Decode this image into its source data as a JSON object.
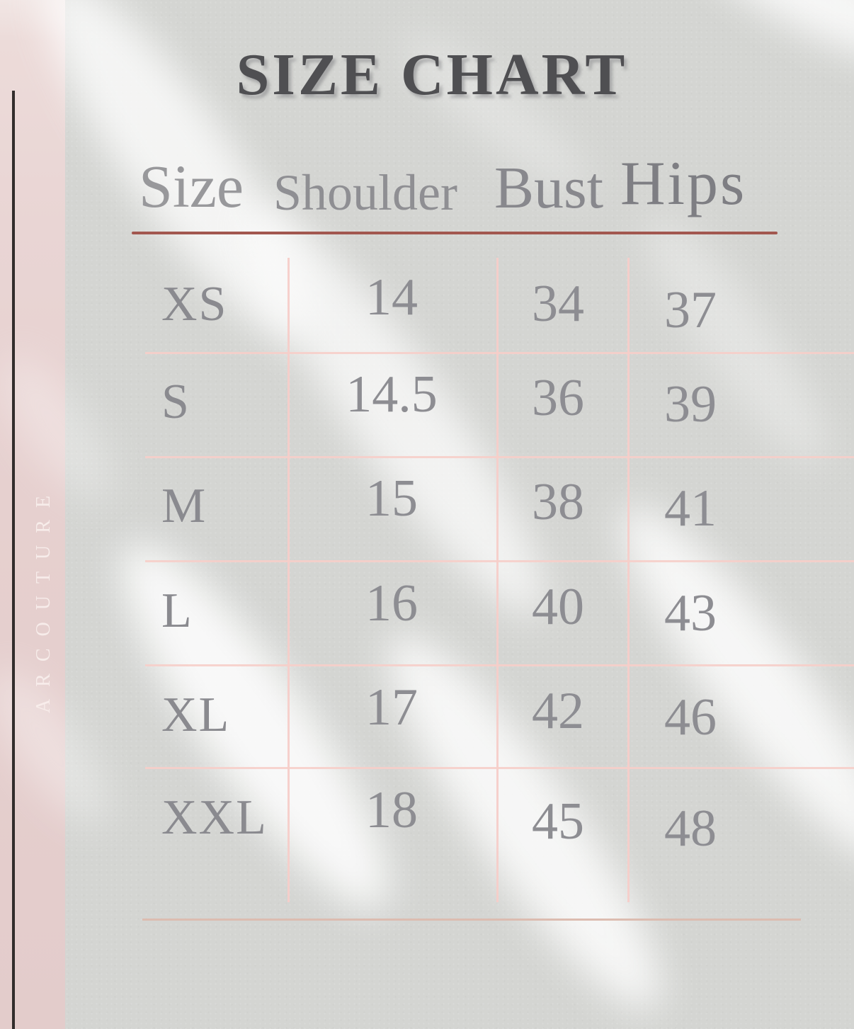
{
  "title": "SIZE CHART",
  "brand": "ARCOUTURE",
  "table": {
    "columns": [
      "Size",
      "Shoulder",
      "Bust",
      "Hips"
    ],
    "rows": [
      {
        "size": "XS",
        "shoulder": "14",
        "bust": "34",
        "hips": "37"
      },
      {
        "size": "S",
        "shoulder": "14.5",
        "bust": "36",
        "hips": "39"
      },
      {
        "size": "M",
        "shoulder": "15",
        "bust": "38",
        "hips": "41"
      },
      {
        "size": "L",
        "shoulder": "16",
        "bust": "40",
        "hips": "43"
      },
      {
        "size": "XL",
        "shoulder": "17",
        "bust": "42",
        "hips": "46"
      },
      {
        "size": "XXL",
        "shoulder": "18",
        "bust": "45",
        "hips": "48"
      }
    ]
  },
  "colors": {
    "background_gray": "#d4d5d2",
    "sidebar_pink": "#e6d0cf",
    "grid_pink": "#f6cec9",
    "header_rule_red": "#a2574f",
    "bottom_rule_tan": "#dcbcb0",
    "text_gray": "#8d8d92",
    "title_gray": "#4f4f52",
    "brand_text": "#f8efed",
    "sidebar_rule_dark": "#322d2c"
  },
  "chart_data": {
    "type": "table",
    "title": "SIZE CHART",
    "columns": [
      "Size",
      "Shoulder",
      "Bust",
      "Hips"
    ],
    "rows": [
      [
        "XS",
        "14",
        "34",
        "37"
      ],
      [
        "S",
        "14.5",
        "36",
        "39"
      ],
      [
        "M",
        "15",
        "38",
        "41"
      ],
      [
        "L",
        "16",
        "40",
        "43"
      ],
      [
        "XL",
        "17",
        "42",
        "46"
      ],
      [
        "XXL",
        "18",
        "45",
        "48"
      ]
    ],
    "layout": {
      "grid": "pink lines on",
      "legend": "none"
    }
  }
}
